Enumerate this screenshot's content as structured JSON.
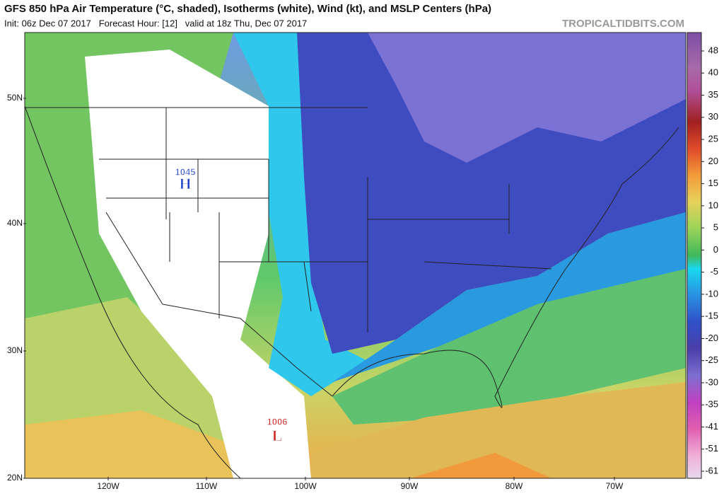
{
  "header": {
    "title": "GFS 850 hPa Air Temperature (°C, shaded), Isotherms (white), Wind (kt), and MSLP Centers (hPa)",
    "subtitle": "Init: 06z Dec 07 2017   Forecast Hour: [12]   valid at 18z Thu, Dec 07 2017",
    "source": "TROPICALTIDBITS.COM"
  },
  "map": {
    "latitude_labels": [
      "50N",
      "40N",
      "30N",
      "20N"
    ],
    "longitude_labels": [
      "120W",
      "110W",
      "100W",
      "90W",
      "80W",
      "70W"
    ],
    "pressure_centers": [
      {
        "type": "H",
        "value": 1045
      },
      {
        "type": "L",
        "value": 1006
      }
    ]
  },
  "colorbar": {
    "labels": [
      48,
      40,
      35,
      30,
      25,
      20,
      15,
      10,
      5,
      0,
      -5,
      -10,
      -15,
      -20,
      -25,
      -30,
      -35,
      -41,
      -51,
      -61
    ]
  }
}
